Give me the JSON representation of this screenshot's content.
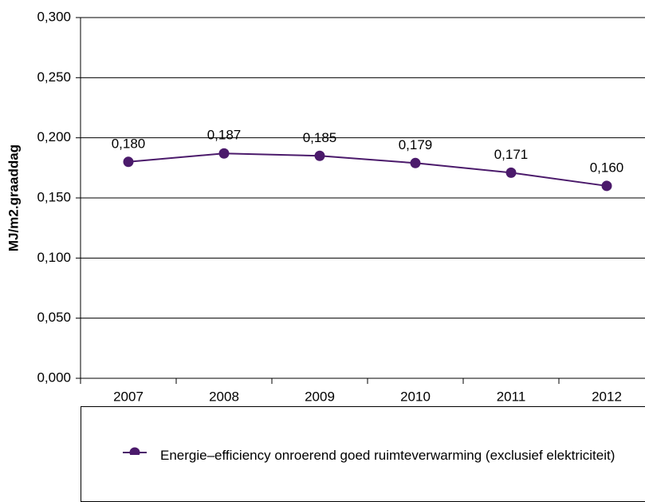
{
  "chart_data": {
    "type": "line",
    "y_label": "MJ/m2.graaddag",
    "categories": [
      "2007",
      "2008",
      "2009",
      "2010",
      "2011",
      "2012"
    ],
    "series": [
      {
        "name": "Energie–efficiency onroerend goed ruimteverwarming (exclusief elektriciteit)",
        "color": "#4b1a6b",
        "values": [
          0.18,
          0.187,
          0.185,
          0.179,
          0.171,
          0.16
        ],
        "value_labels": [
          "0,180",
          "0,187",
          "0,185",
          "0,179",
          "0,171",
          "0,160"
        ]
      }
    ],
    "ylim": [
      0,
      0.3
    ],
    "yticks": [
      {
        "value": 0,
        "label": "0,000"
      },
      {
        "value": 0.05,
        "label": "0,050"
      },
      {
        "value": 0.1,
        "label": "0,100"
      },
      {
        "value": 0.15,
        "label": "0,150"
      },
      {
        "value": 0.2,
        "label": "0,200"
      },
      {
        "value": 0.25,
        "label": "0,250"
      },
      {
        "value": 0.3,
        "label": "0,300"
      }
    ],
    "grid": true,
    "legend": "bottom"
  }
}
